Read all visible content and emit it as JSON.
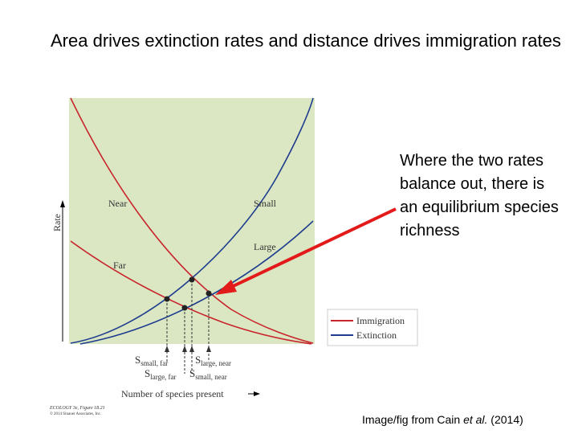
{
  "title": "Area drives extinction rates and distance drives immigration rates",
  "callout": "Where the two rates balance out, there is an equilibrium species richness",
  "credit": {
    "prefix": "Image/fig from Cain ",
    "italic": "et al.",
    "suffix": " (2014)"
  },
  "figure": {
    "y_axis_label": "Rate",
    "x_axis_label": "Number of species present",
    "curve_labels": {
      "near": "Near",
      "far": "Far",
      "small": "Small",
      "large": "Large"
    },
    "legend": {
      "immigration": "Immigration",
      "extinction": "Extinction"
    },
    "s_labels": [
      {
        "main": "S",
        "sub": "small, far"
      },
      {
        "main": "S",
        "sub": "large, far"
      },
      {
        "main": "S",
        "sub": "small, near"
      },
      {
        "main": "S",
        "sub": "large, near"
      }
    ],
    "footer_line1": "ECOLOGY 3e, Figure 18.21",
    "footer_line2": "© 2014 Sinauer Associates, Inc.",
    "colors": {
      "panel": "#dbe7c3",
      "immigration": "#c8242b",
      "extinction": "#1e3d8f",
      "arrow": "#e31a1a"
    }
  }
}
